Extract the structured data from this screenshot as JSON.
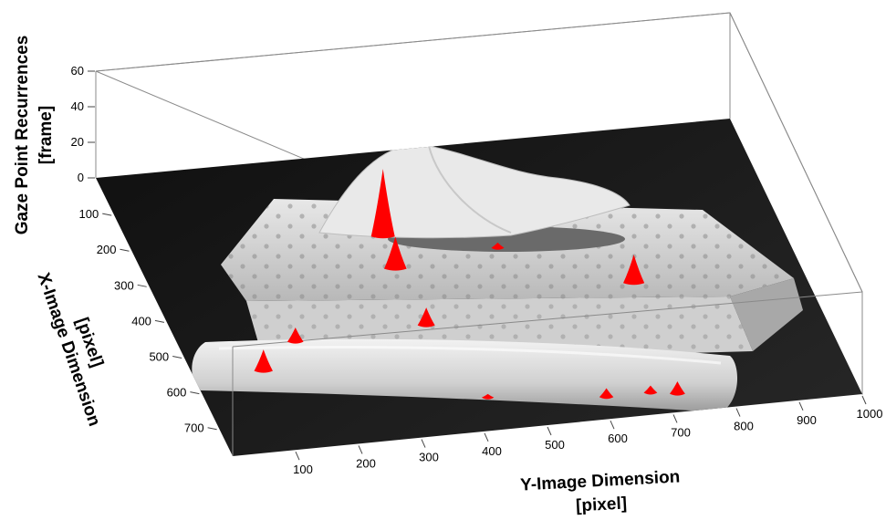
{
  "chart_data": {
    "type": "3d-histogram",
    "zlabel_line1": "Gaze Point Recurrences",
    "zlabel_line2": "[frame]",
    "xlabel_line1": "X-Image Dimension",
    "xlabel_line2": "[pixel]",
    "ylabel_line1": "Y-Image Dimension",
    "ylabel_line2": "[pixel]",
    "z_ticks": [
      "60",
      "40",
      "20",
      "0"
    ],
    "x_ticks": [
      "100",
      "200",
      "300",
      "400",
      "500",
      "600",
      "700"
    ],
    "y_ticks": [
      "100",
      "200",
      "300",
      "400",
      "500",
      "600",
      "700",
      "800",
      "900",
      "1000"
    ],
    "zlim": [
      0,
      60
    ],
    "xlim": [
      0,
      780
    ],
    "ylim": [
      0,
      1000
    ],
    "background_image": "grayscale photo of a tissue box and a rolled towel",
    "peak_color": "#ff0000",
    "peaks": [
      {
        "y": 390,
        "x": 230,
        "z": 38
      },
      {
        "y": 385,
        "x": 320,
        "z": 18
      },
      {
        "y": 555,
        "x": 290,
        "z": 3
      },
      {
        "y": 735,
        "x": 420,
        "z": 16
      },
      {
        "y": 180,
        "x": 490,
        "z": 8
      },
      {
        "y": 390,
        "x": 480,
        "z": 10
      },
      {
        "y": 110,
        "x": 560,
        "z": 12
      },
      {
        "y": 430,
        "x": 690,
        "z": 2
      },
      {
        "y": 610,
        "x": 720,
        "z": 5
      },
      {
        "y": 680,
        "x": 720,
        "z": 4
      },
      {
        "y": 720,
        "x": 730,
        "z": 7
      }
    ]
  }
}
